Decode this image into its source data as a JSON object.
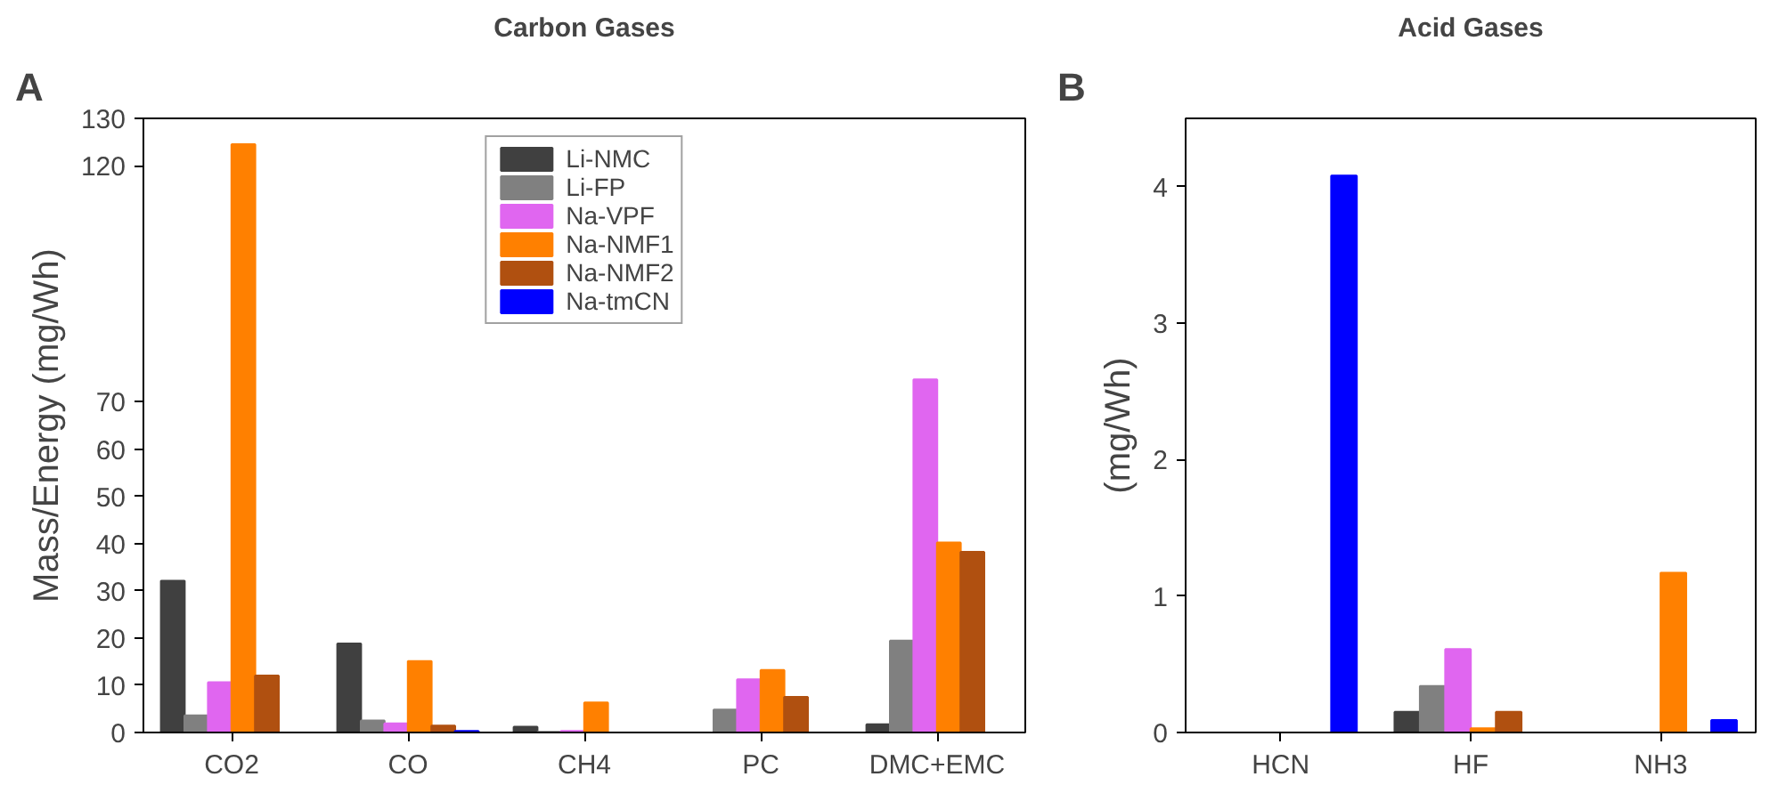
{
  "chart_data": [
    {
      "type": "bar",
      "title": "Carbon Gases",
      "annotations": [
        "A"
      ],
      "ylabel": "Mass/Energy (mg/Wh)",
      "legend": "top",
      "categories": [
        "CO2",
        "CO",
        "CH4",
        "PC",
        "DMC+EMC"
      ],
      "ylim": [
        0,
        130
      ],
      "yticks": [
        0,
        10,
        20,
        30,
        40,
        50,
        60,
        70,
        120,
        130
      ],
      "series": [
        {
          "name": "Li-NMC",
          "color": "#404040",
          "values": [
            32.1,
            18.8,
            1.2,
            null,
            1.7
          ]
        },
        {
          "name": "Li-FP",
          "color": "#808080",
          "values": [
            3.6,
            2.5,
            0.1,
            4.8,
            19.4
          ]
        },
        {
          "name": "Na-VPF",
          "color": "#e066f0",
          "values": [
            10.6,
            1.9,
            0.3,
            11.2,
            74.7
          ]
        },
        {
          "name": "Na-NMF1",
          "color": "#ff8000",
          "values": [
            124.5,
            15.1,
            6.3,
            13.2,
            40.2
          ]
        },
        {
          "name": "Na-NMF2",
          "color": "#b05010",
          "values": [
            12.0,
            1.4,
            null,
            7.5,
            38.2
          ]
        },
        {
          "name": "Na-tmCN",
          "color": "#0000ff",
          "values": [
            null,
            0.3,
            null,
            null,
            null
          ]
        }
      ]
    },
    {
      "type": "bar",
      "title": "Acid Gases",
      "annotations": [
        "B"
      ],
      "ylabel": "(mg/Wh)",
      "categories": [
        "HCN",
        "HF",
        "NH3"
      ],
      "ylim": [
        0,
        4.5
      ],
      "yticks": [
        0,
        1,
        2,
        3,
        4
      ],
      "series": [
        {
          "color": "#404040",
          "values": [
            null,
            0.15,
            null
          ]
        },
        {
          "color": "#808080",
          "values": [
            null,
            0.34,
            null
          ]
        },
        {
          "color": "#e066f0",
          "values": [
            null,
            0.61,
            null
          ]
        },
        {
          "color": "#ff8000",
          "values": [
            null,
            0.03,
            1.17
          ]
        },
        {
          "color": "#b05010",
          "values": [
            null,
            0.15,
            null
          ]
        },
        {
          "color": "#0000ff",
          "values": [
            4.08,
            null,
            0.09
          ]
        }
      ]
    }
  ]
}
